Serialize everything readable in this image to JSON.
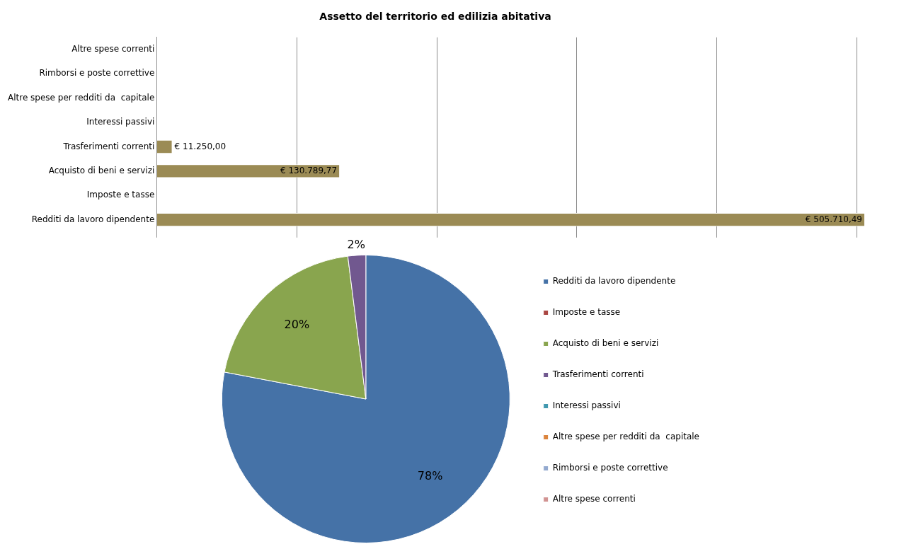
{
  "chart_data": [
    {
      "type": "bar",
      "orientation": "horizontal",
      "title": "Assetto del territorio ed edilizia abitativa",
      "categories": [
        "Altre spese correnti",
        "Rimborsi e poste correttive",
        "Altre spese per redditi da  capitale",
        "Interessi passivi",
        "Trasferimenti correnti",
        "Acquisto di beni e servizi",
        "Imposte e tasse",
        "Redditi da lavoro dipendente"
      ],
      "values": [
        0,
        0,
        0,
        0,
        11250,
        130789.77,
        0,
        505710.49
      ],
      "value_labels": [
        null,
        null,
        null,
        null,
        "€ 11.250,00",
        "€ 130.789,77",
        null,
        "€ 505.710,49"
      ],
      "color": "#9b8b55",
      "xticks": [
        {
          "value": 0,
          "label": null
        },
        {
          "value": 100000,
          "label": null
        },
        {
          "value": 200000,
          "label": null
        },
        {
          "value": 300000,
          "label": null
        },
        {
          "value": 400000,
          "label": null
        },
        {
          "value": 500000,
          "label": null
        }
      ],
      "tick_labels": "y",
      "grid": "x",
      "legend": false
    },
    {
      "type": "pie",
      "categories": [
        "Redditi da lavoro dipendente",
        "Imposte e tasse",
        "Acquisto di beni e servizi",
        "Trasferimenti correnti",
        "Interessi passivi",
        "Altre spese per redditi da  capitale",
        "Rimborsi e poste correttive",
        "Altre spese correnti"
      ],
      "values": [
        78,
        0,
        20,
        2,
        0,
        0,
        0,
        0
      ],
      "value_labels": [
        "78%",
        null,
        "20%",
        "2%",
        null,
        null,
        null,
        null
      ],
      "colors": [
        "#4572a7",
        "#aa4643",
        "#89a54e",
        "#71588f",
        "#4198af",
        "#db843d",
        "#93a9cf",
        "#d19392"
      ],
      "legend": "right"
    }
  ]
}
